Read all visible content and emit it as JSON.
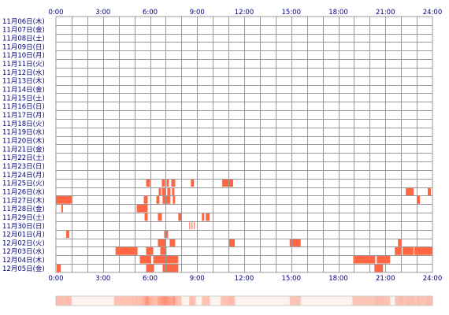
{
  "chart_data": {
    "type": "heatmap",
    "title": "",
    "xlabel": "",
    "ylabel": "",
    "x_ticks": [
      "0:00",
      "3:00",
      "6:00",
      "9:00",
      "12:00",
      "15:00",
      "18:00",
      "21:00",
      "24:00"
    ],
    "xlim": [
      0,
      24
    ],
    "grid": true,
    "bar_color": "#ff6644",
    "grid_color": "#999999",
    "label_color": "#000080",
    "summary_strip": true,
    "days": [
      {
        "label": "11月06日(木)",
        "segments": []
      },
      {
        "label": "11月07日(金)",
        "segments": []
      },
      {
        "label": "11月08日(土)",
        "segments": []
      },
      {
        "label": "11月09日(日)",
        "segments": []
      },
      {
        "label": "11月10日(月)",
        "segments": []
      },
      {
        "label": "11月11日(火)",
        "segments": []
      },
      {
        "label": "11月12日(水)",
        "segments": []
      },
      {
        "label": "11月13日(木)",
        "segments": []
      },
      {
        "label": "11月14日(金)",
        "segments": []
      },
      {
        "label": "11月15日(土)",
        "segments": []
      },
      {
        "label": "11月16日(日)",
        "segments": []
      },
      {
        "label": "11月17日(月)",
        "segments": []
      },
      {
        "label": "11月18日(火)",
        "segments": []
      },
      {
        "label": "11月19日(水)",
        "segments": []
      },
      {
        "label": "11月20日(木)",
        "segments": []
      },
      {
        "label": "11月21日(金)",
        "segments": []
      },
      {
        "label": "11月22日(土)",
        "segments": []
      },
      {
        "label": "11月23日(日)",
        "segments": []
      },
      {
        "label": "11月24日(月)",
        "segments": []
      },
      {
        "label": "11月25日(火)",
        "segments": [
          [
            5.75,
            6.0
          ],
          [
            6.75,
            6.95
          ],
          [
            7.05,
            7.2
          ],
          [
            7.35,
            7.6
          ],
          [
            8.6,
            8.8
          ],
          [
            10.6,
            11.3
          ]
        ]
      },
      {
        "label": "11月26日(水)",
        "segments": [
          [
            6.55,
            6.7
          ],
          [
            6.75,
            7.0
          ],
          [
            7.1,
            7.3
          ],
          [
            7.4,
            7.55
          ],
          [
            22.3,
            22.8
          ],
          [
            23.7,
            23.9
          ]
        ]
      },
      {
        "label": "11月27日(木)",
        "segments": [
          [
            0.0,
            1.0
          ],
          [
            5.6,
            5.85
          ],
          [
            6.4,
            6.6
          ],
          [
            6.8,
            7.3
          ],
          [
            7.45,
            7.6
          ],
          [
            23.0,
            23.2
          ]
        ]
      },
      {
        "label": "11月28日(金)",
        "segments": [
          [
            0.35,
            0.45
          ],
          [
            5.15,
            5.85
          ]
        ]
      },
      {
        "label": "11月29日(土)",
        "segments": [
          [
            5.65,
            5.85
          ],
          [
            6.5,
            6.75
          ],
          [
            7.8,
            8.0
          ],
          [
            9.3,
            9.45
          ],
          [
            9.55,
            9.8
          ]
        ]
      },
      {
        "label": "11月30日(日)",
        "segments": [
          [
            8.5,
            8.55
          ],
          [
            8.65,
            8.7
          ],
          [
            8.8,
            8.85
          ]
        ]
      },
      {
        "label": "12月01日(月)",
        "segments": [
          [
            0.65,
            0.85
          ],
          [
            6.9,
            7.15
          ]
        ]
      },
      {
        "label": "12月02日(火)",
        "segments": [
          [
            6.5,
            7.0
          ],
          [
            7.25,
            7.6
          ],
          [
            11.0,
            11.4
          ],
          [
            14.9,
            15.6
          ],
          [
            21.8,
            22.05
          ]
        ]
      },
      {
        "label": "12月03日(水)",
        "segments": [
          [
            3.8,
            5.2
          ],
          [
            5.75,
            6.2
          ],
          [
            6.65,
            7.05
          ],
          [
            21.6,
            22.05
          ],
          [
            22.1,
            22.8
          ],
          [
            22.85,
            24.0
          ]
        ]
      },
      {
        "label": "12月04日(木)",
        "segments": [
          [
            5.35,
            6.05
          ],
          [
            6.2,
            7.8
          ],
          [
            18.95,
            20.35
          ],
          [
            20.45,
            21.3
          ]
        ]
      },
      {
        "label": "12月05日(金)",
        "segments": [
          [
            0.05,
            0.3
          ],
          [
            5.75,
            6.25
          ],
          [
            6.8,
            7.8
          ],
          [
            20.3,
            20.85
          ]
        ]
      }
    ]
  }
}
